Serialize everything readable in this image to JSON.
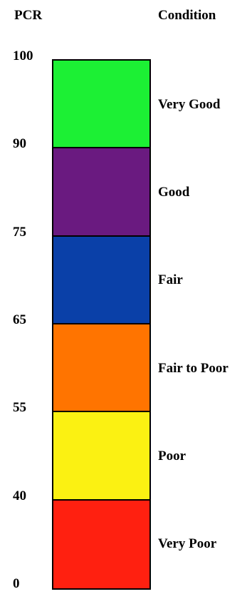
{
  "headers": {
    "pcr": "PCR",
    "condition": "Condition"
  },
  "ticks": [
    {
      "label": "100",
      "value": 100
    },
    {
      "label": "90",
      "value": 90
    },
    {
      "label": "75",
      "value": 75
    },
    {
      "label": "65",
      "value": 65
    },
    {
      "label": "55",
      "value": 55
    },
    {
      "label": "40",
      "value": 40
    },
    {
      "label": "0",
      "value": 0
    }
  ],
  "bands": [
    {
      "condition": "Very Good",
      "min": 90,
      "max": 100,
      "color": "#1cf034"
    },
    {
      "condition": "Good",
      "min": 75,
      "max": 90,
      "color": "#6a1a80"
    },
    {
      "condition": "Fair",
      "min": 65,
      "max": 75,
      "color": "#0a40a8"
    },
    {
      "condition": "Fair to Poor",
      "min": 55,
      "max": 65,
      "color": "#ff7400"
    },
    {
      "condition": "Poor",
      "min": 40,
      "max": 55,
      "color": "#fbf112"
    },
    {
      "condition": "Very Poor",
      "min": 0,
      "max": 40,
      "color": "#ff2010"
    }
  ]
}
